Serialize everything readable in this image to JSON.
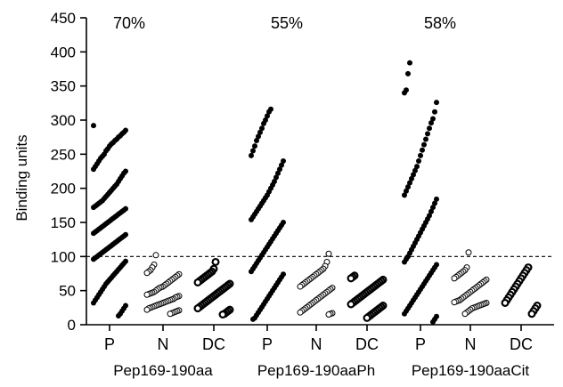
{
  "chart_data": {
    "type": "scatter",
    "ylabel": "Binding units",
    "ylim": [
      0,
      450
    ],
    "yticks": [
      0,
      50,
      100,
      150,
      200,
      250,
      300,
      350,
      400,
      450
    ],
    "threshold": 100,
    "colors": {
      "positive": "#000000",
      "negative_fill": "#ffffff",
      "stroke": "#000000"
    },
    "groups": [
      {
        "name": "Pep169-190aa",
        "percent": "70%",
        "categories": [
          {
            "label": "P",
            "style": "filled",
            "values": [
              292,
              285,
              282,
              280,
              277,
              275,
              272,
              270,
              267,
              265,
              262,
              258,
              255,
              250,
              247,
              244,
              240,
              236,
              232,
              228,
              225,
              222,
              218,
              214,
              210,
              206,
              203,
              200,
              197,
              194,
              191,
              188,
              185,
              182,
              180,
              178,
              176,
              174,
              172,
              170,
              168,
              166,
              164,
              162,
              160,
              158,
              156,
              154,
              152,
              150,
              148,
              146,
              144,
              142,
              140,
              138,
              136,
              134,
              132,
              130,
              128,
              126,
              124,
              122,
              120,
              118,
              116,
              114,
              112,
              110,
              108,
              106,
              104,
              102,
              100,
              98,
              96,
              93,
              90,
              87,
              84,
              81,
              78,
              75,
              72,
              69,
              66,
              63,
              60,
              56,
              52,
              48,
              44,
              40,
              36,
              32,
              28,
              24,
              20,
              16,
              13
            ]
          },
          {
            "label": "N",
            "style": "open",
            "values": [
              102,
              88,
              84,
              80,
              78,
              76,
              74,
              72,
              70,
              68,
              66,
              64,
              62,
              60,
              58,
              56,
              55,
              54,
              52,
              50,
              48,
              47,
              46,
              45,
              44,
              42,
              41,
              40,
              38,
              37,
              36,
              35,
              34,
              33,
              32,
              31,
              30,
              29,
              28,
              27,
              26,
              25,
              24,
              22,
              21,
              20,
              19,
              18,
              17,
              16
            ]
          },
          {
            "label": "DC",
            "style": "bold-open",
            "values": [
              92,
              82,
              78,
              76,
              74,
              72,
              70,
              68,
              66,
              64,
              62,
              60,
              58,
              56,
              54,
              52,
              50,
              48,
              46,
              44,
              42,
              40,
              38,
              36,
              34,
              32,
              30,
              28,
              26,
              24,
              22,
              20,
              18,
              16,
              15
            ]
          }
        ]
      },
      {
        "name": "Pep169-190aaPh",
        "percent": "55%",
        "categories": [
          {
            "label": "P",
            "style": "filled",
            "values": [
              316,
              312,
              306,
              300,
              295,
              288,
              282,
              276,
              270,
              262,
              255,
              248,
              240,
              234,
              228,
              222,
              216,
              210,
              205,
              200,
              195,
              190,
              186,
              182,
              178,
              174,
              170,
              166,
              162,
              158,
              154,
              150,
              146,
              142,
              138,
              134,
              130,
              126,
              122,
              118,
              114,
              110,
              106,
              102,
              98,
              94,
              90,
              86,
              82,
              78,
              74,
              70,
              66,
              62,
              58,
              54,
              50,
              46,
              42,
              38,
              34,
              30,
              26,
              22,
              18,
              14,
              10,
              8
            ]
          },
          {
            "label": "N",
            "style": "open",
            "values": [
              104,
              92,
              86,
              82,
              80,
              78,
              76,
              74,
              72,
              70,
              68,
              66,
              64,
              62,
              60,
              58,
              56,
              54,
              52,
              50,
              48,
              46,
              44,
              42,
              40,
              38,
              36,
              34,
              32,
              30,
              28,
              26,
              24,
              22,
              20,
              18,
              17,
              16,
              15
            ]
          },
          {
            "label": "DC",
            "style": "bold-open",
            "values": [
              72,
              70,
              68,
              66,
              64,
              62,
              60,
              58,
              56,
              54,
              52,
              50,
              48,
              46,
              44,
              42,
              40,
              38,
              36,
              34,
              32,
              30,
              28,
              26,
              24,
              22,
              20,
              18,
              16,
              14,
              12,
              10
            ]
          }
        ]
      },
      {
        "name": "Pep169-190aaCit",
        "percent": "58%",
        "categories": [
          {
            "label": "P",
            "style": "filled",
            "values": [
              384,
              368,
              344,
              340,
              326,
              312,
              302,
              296,
              288,
              280,
              272,
              264,
              256,
              248,
              240,
              232,
              226,
              220,
              214,
              208,
              202,
              196,
              190,
              184,
              178,
              172,
              166,
              160,
              155,
              150,
              145,
              140,
              135,
              130,
              125,
              120,
              115,
              110,
              105,
              100,
              96,
              92,
              88,
              84,
              80,
              76,
              72,
              68,
              64,
              60,
              56,
              52,
              48,
              44,
              40,
              36,
              32,
              28,
              24,
              20,
              16,
              12,
              8,
              4
            ]
          },
          {
            "label": "N",
            "style": "open",
            "values": [
              106,
              84,
              80,
              78,
              76,
              74,
              72,
              70,
              68,
              66,
              64,
              62,
              60,
              58,
              56,
              54,
              52,
              50,
              48,
              46,
              44,
              42,
              40,
              38,
              36,
              35,
              34,
              33,
              32,
              31,
              30,
              29,
              28,
              27,
              26,
              25,
              24,
              22,
              20,
              18,
              16
            ]
          },
          {
            "label": "DC",
            "style": "bold-open",
            "values": [
              84,
              80,
              76,
              72,
              68,
              64,
              60,
              56,
              52,
              48,
              44,
              40,
              36,
              32,
              28,
              24,
              20,
              16
            ]
          }
        ]
      }
    ]
  }
}
